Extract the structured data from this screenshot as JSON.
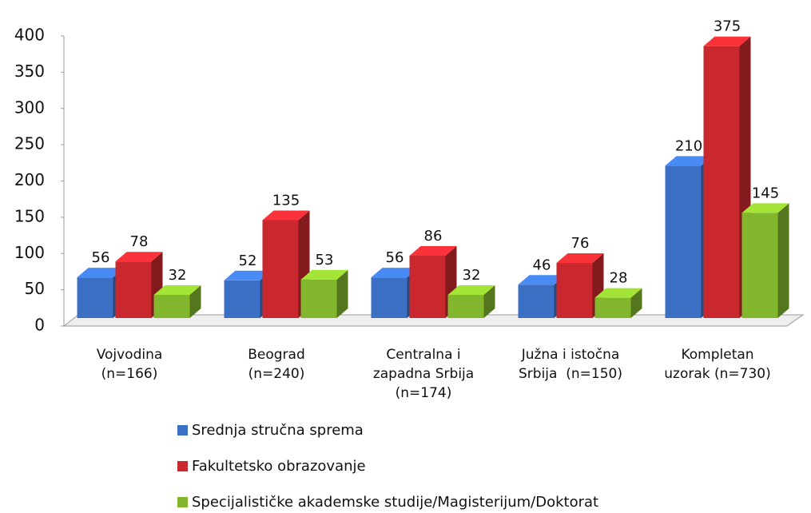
{
  "chart_data": {
    "type": "bar3d",
    "categories": [
      "Vojvodina\n(n=166)",
      "Beograd\n(n=240)",
      "Centralna i\nzapadna Srbija\n(n=174)",
      "Južna i istočna\nSrbija  (n=150)",
      "Kompletan\nuzorak (n=730)"
    ],
    "series": [
      {
        "name": "Srednja stručna sprema",
        "color": "#3a6fc4",
        "values": [
          56,
          52,
          56,
          46,
          210
        ]
      },
      {
        "name": "Fakultetsko obrazovanje",
        "color": "#c8282e",
        "values": [
          78,
          135,
          86,
          76,
          375
        ]
      },
      {
        "name": "Specijalističke akademske studije/Magisterijum/Doktorat",
        "color": "#82b62c",
        "values": [
          32,
          53,
          32,
          28,
          145
        ]
      }
    ],
    "ylim": [
      0,
      400
    ],
    "yticks": [
      0,
      50,
      100,
      150,
      200,
      250,
      300,
      350,
      400
    ],
    "grid": false
  }
}
